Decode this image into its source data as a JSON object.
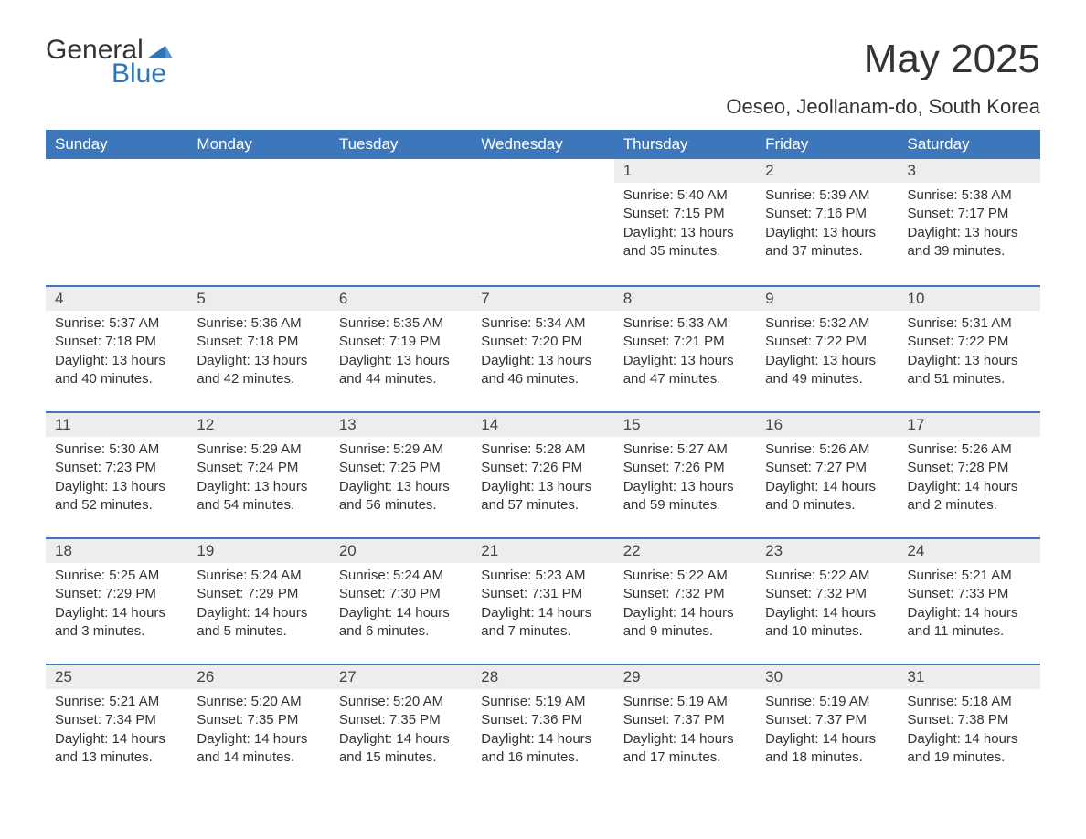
{
  "logo": {
    "line1": "General",
    "line2": "Blue",
    "line2_color": "#2f74b5",
    "tri_color": "#2f74b5"
  },
  "title": "May 2025",
  "subtitle": "Oeseo, Jeollanam-do, South Korea",
  "colors": {
    "header_bg": "#3d77bb",
    "header_text": "#ffffff",
    "daynum_bg": "#ededed",
    "row_border": "#3d77bb",
    "body_text": "#333333",
    "page_bg": "#ffffff"
  },
  "fonts": {
    "title_size_pt": 33,
    "subtitle_size_pt": 17,
    "dayheader_size_pt": 13,
    "daynum_size_pt": 13,
    "body_size_pt": 11
  },
  "day_headers": [
    "Sunday",
    "Monday",
    "Tuesday",
    "Wednesday",
    "Thursday",
    "Friday",
    "Saturday"
  ],
  "weeks": [
    [
      null,
      null,
      null,
      null,
      {
        "n": "1",
        "sr": "Sunrise: 5:40 AM",
        "ss": "Sunset: 7:15 PM",
        "dl": "Daylight: 13 hours and 35 minutes."
      },
      {
        "n": "2",
        "sr": "Sunrise: 5:39 AM",
        "ss": "Sunset: 7:16 PM",
        "dl": "Daylight: 13 hours and 37 minutes."
      },
      {
        "n": "3",
        "sr": "Sunrise: 5:38 AM",
        "ss": "Sunset: 7:17 PM",
        "dl": "Daylight: 13 hours and 39 minutes."
      }
    ],
    [
      {
        "n": "4",
        "sr": "Sunrise: 5:37 AM",
        "ss": "Sunset: 7:18 PM",
        "dl": "Daylight: 13 hours and 40 minutes."
      },
      {
        "n": "5",
        "sr": "Sunrise: 5:36 AM",
        "ss": "Sunset: 7:18 PM",
        "dl": "Daylight: 13 hours and 42 minutes."
      },
      {
        "n": "6",
        "sr": "Sunrise: 5:35 AM",
        "ss": "Sunset: 7:19 PM",
        "dl": "Daylight: 13 hours and 44 minutes."
      },
      {
        "n": "7",
        "sr": "Sunrise: 5:34 AM",
        "ss": "Sunset: 7:20 PM",
        "dl": "Daylight: 13 hours and 46 minutes."
      },
      {
        "n": "8",
        "sr": "Sunrise: 5:33 AM",
        "ss": "Sunset: 7:21 PM",
        "dl": "Daylight: 13 hours and 47 minutes."
      },
      {
        "n": "9",
        "sr": "Sunrise: 5:32 AM",
        "ss": "Sunset: 7:22 PM",
        "dl": "Daylight: 13 hours and 49 minutes."
      },
      {
        "n": "10",
        "sr": "Sunrise: 5:31 AM",
        "ss": "Sunset: 7:22 PM",
        "dl": "Daylight: 13 hours and 51 minutes."
      }
    ],
    [
      {
        "n": "11",
        "sr": "Sunrise: 5:30 AM",
        "ss": "Sunset: 7:23 PM",
        "dl": "Daylight: 13 hours and 52 minutes."
      },
      {
        "n": "12",
        "sr": "Sunrise: 5:29 AM",
        "ss": "Sunset: 7:24 PM",
        "dl": "Daylight: 13 hours and 54 minutes."
      },
      {
        "n": "13",
        "sr": "Sunrise: 5:29 AM",
        "ss": "Sunset: 7:25 PM",
        "dl": "Daylight: 13 hours and 56 minutes."
      },
      {
        "n": "14",
        "sr": "Sunrise: 5:28 AM",
        "ss": "Sunset: 7:26 PM",
        "dl": "Daylight: 13 hours and 57 minutes."
      },
      {
        "n": "15",
        "sr": "Sunrise: 5:27 AM",
        "ss": "Sunset: 7:26 PM",
        "dl": "Daylight: 13 hours and 59 minutes."
      },
      {
        "n": "16",
        "sr": "Sunrise: 5:26 AM",
        "ss": "Sunset: 7:27 PM",
        "dl": "Daylight: 14 hours and 0 minutes."
      },
      {
        "n": "17",
        "sr": "Sunrise: 5:26 AM",
        "ss": "Sunset: 7:28 PM",
        "dl": "Daylight: 14 hours and 2 minutes."
      }
    ],
    [
      {
        "n": "18",
        "sr": "Sunrise: 5:25 AM",
        "ss": "Sunset: 7:29 PM",
        "dl": "Daylight: 14 hours and 3 minutes."
      },
      {
        "n": "19",
        "sr": "Sunrise: 5:24 AM",
        "ss": "Sunset: 7:29 PM",
        "dl": "Daylight: 14 hours and 5 minutes."
      },
      {
        "n": "20",
        "sr": "Sunrise: 5:24 AM",
        "ss": "Sunset: 7:30 PM",
        "dl": "Daylight: 14 hours and 6 minutes."
      },
      {
        "n": "21",
        "sr": "Sunrise: 5:23 AM",
        "ss": "Sunset: 7:31 PM",
        "dl": "Daylight: 14 hours and 7 minutes."
      },
      {
        "n": "22",
        "sr": "Sunrise: 5:22 AM",
        "ss": "Sunset: 7:32 PM",
        "dl": "Daylight: 14 hours and 9 minutes."
      },
      {
        "n": "23",
        "sr": "Sunrise: 5:22 AM",
        "ss": "Sunset: 7:32 PM",
        "dl": "Daylight: 14 hours and 10 minutes."
      },
      {
        "n": "24",
        "sr": "Sunrise: 5:21 AM",
        "ss": "Sunset: 7:33 PM",
        "dl": "Daylight: 14 hours and 11 minutes."
      }
    ],
    [
      {
        "n": "25",
        "sr": "Sunrise: 5:21 AM",
        "ss": "Sunset: 7:34 PM",
        "dl": "Daylight: 14 hours and 13 minutes."
      },
      {
        "n": "26",
        "sr": "Sunrise: 5:20 AM",
        "ss": "Sunset: 7:35 PM",
        "dl": "Daylight: 14 hours and 14 minutes."
      },
      {
        "n": "27",
        "sr": "Sunrise: 5:20 AM",
        "ss": "Sunset: 7:35 PM",
        "dl": "Daylight: 14 hours and 15 minutes."
      },
      {
        "n": "28",
        "sr": "Sunrise: 5:19 AM",
        "ss": "Sunset: 7:36 PM",
        "dl": "Daylight: 14 hours and 16 minutes."
      },
      {
        "n": "29",
        "sr": "Sunrise: 5:19 AM",
        "ss": "Sunset: 7:37 PM",
        "dl": "Daylight: 14 hours and 17 minutes."
      },
      {
        "n": "30",
        "sr": "Sunrise: 5:19 AM",
        "ss": "Sunset: 7:37 PM",
        "dl": "Daylight: 14 hours and 18 minutes."
      },
      {
        "n": "31",
        "sr": "Sunrise: 5:18 AM",
        "ss": "Sunset: 7:38 PM",
        "dl": "Daylight: 14 hours and 19 minutes."
      }
    ]
  ]
}
